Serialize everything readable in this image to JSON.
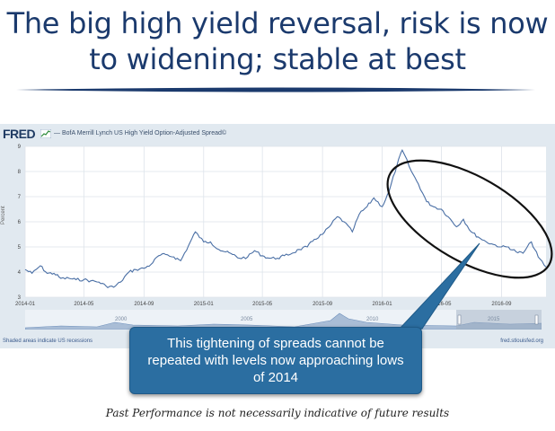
{
  "slide": {
    "title": "The big high yield reversal, risk is now to widening; stable at best",
    "callout": "This tightening of spreads cannot be repeated with levels now approaching lows of 2014",
    "disclaimer": "Past Performance is not necessarily indicative of future results"
  },
  "fred": {
    "logo_text": "FRED",
    "recession_note": "Shaded areas indicate US recessions",
    "source": "fred.stlouisfed.org",
    "navigator_year_labels": [
      "2000",
      "2005",
      "2010",
      "2015"
    ]
  },
  "colors": {
    "title": "#1b3a6d",
    "line": "#4a6fa5",
    "panel": "#e1e9f0",
    "callout": "#2b6ea1"
  },
  "chart_data": {
    "type": "line",
    "title": "BofA Merrill Lynch US High Yield Option-Adjusted Spread©",
    "ylabel": "Percent",
    "ylim": [
      3,
      9
    ],
    "yticks": [
      3,
      4,
      5,
      6,
      7,
      8,
      9
    ],
    "xlim": [
      "2014-01-01",
      "2016-12-01"
    ],
    "xticks": [
      "2014-01",
      "2014-05",
      "2014-09",
      "2015-01",
      "2015-05",
      "2015-09",
      "2016-01",
      "2016-05",
      "2016-09"
    ],
    "grid": true,
    "series": [
      {
        "name": "BofA Merrill Lynch US High Yield Option-Adjusted Spread©",
        "x": [
          "2014-01-01",
          "2014-01-15",
          "2014-02-01",
          "2014-02-15",
          "2014-03-01",
          "2014-03-15",
          "2014-04-01",
          "2014-04-15",
          "2014-05-01",
          "2014-05-15",
          "2014-06-01",
          "2014-06-15",
          "2014-07-01",
          "2014-07-15",
          "2014-08-01",
          "2014-08-15",
          "2014-09-01",
          "2014-09-15",
          "2014-10-01",
          "2014-10-15",
          "2014-11-01",
          "2014-11-15",
          "2014-12-01",
          "2014-12-15",
          "2015-01-01",
          "2015-01-15",
          "2015-02-01",
          "2015-02-15",
          "2015-03-01",
          "2015-03-15",
          "2015-04-01",
          "2015-04-15",
          "2015-05-01",
          "2015-05-15",
          "2015-06-01",
          "2015-06-15",
          "2015-07-01",
          "2015-07-15",
          "2015-08-01",
          "2015-08-15",
          "2015-09-01",
          "2015-09-15",
          "2015-10-01",
          "2015-10-15",
          "2015-11-01",
          "2015-11-15",
          "2015-12-01",
          "2015-12-15",
          "2016-01-01",
          "2016-01-15",
          "2016-02-01",
          "2016-02-11",
          "2016-03-01",
          "2016-03-15",
          "2016-04-01",
          "2016-04-15",
          "2016-05-01",
          "2016-05-15",
          "2016-06-01",
          "2016-06-15",
          "2016-07-01",
          "2016-07-15",
          "2016-08-01",
          "2016-08-15",
          "2016-09-01",
          "2016-09-15",
          "2016-10-01",
          "2016-10-15",
          "2016-11-01",
          "2016-11-15",
          "2016-12-01"
        ],
        "values": [
          4.1,
          3.95,
          4.25,
          3.95,
          3.95,
          3.75,
          3.75,
          3.7,
          3.7,
          3.65,
          3.6,
          3.45,
          3.4,
          3.6,
          4.0,
          4.1,
          4.15,
          4.3,
          4.65,
          4.7,
          4.6,
          4.45,
          5.05,
          5.6,
          5.2,
          5.2,
          4.9,
          4.8,
          4.7,
          4.55,
          4.6,
          4.85,
          4.65,
          4.55,
          4.55,
          4.65,
          4.75,
          4.9,
          5.0,
          5.3,
          5.5,
          5.8,
          6.2,
          6.0,
          5.6,
          6.3,
          6.6,
          6.95,
          6.6,
          7.2,
          8.3,
          8.85,
          8.0,
          7.5,
          6.8,
          6.6,
          6.5,
          6.2,
          5.8,
          6.1,
          5.6,
          5.4,
          5.2,
          5.1,
          5.0,
          5.0,
          4.8,
          4.75,
          5.2,
          4.6,
          4.2
        ]
      }
    ]
  }
}
